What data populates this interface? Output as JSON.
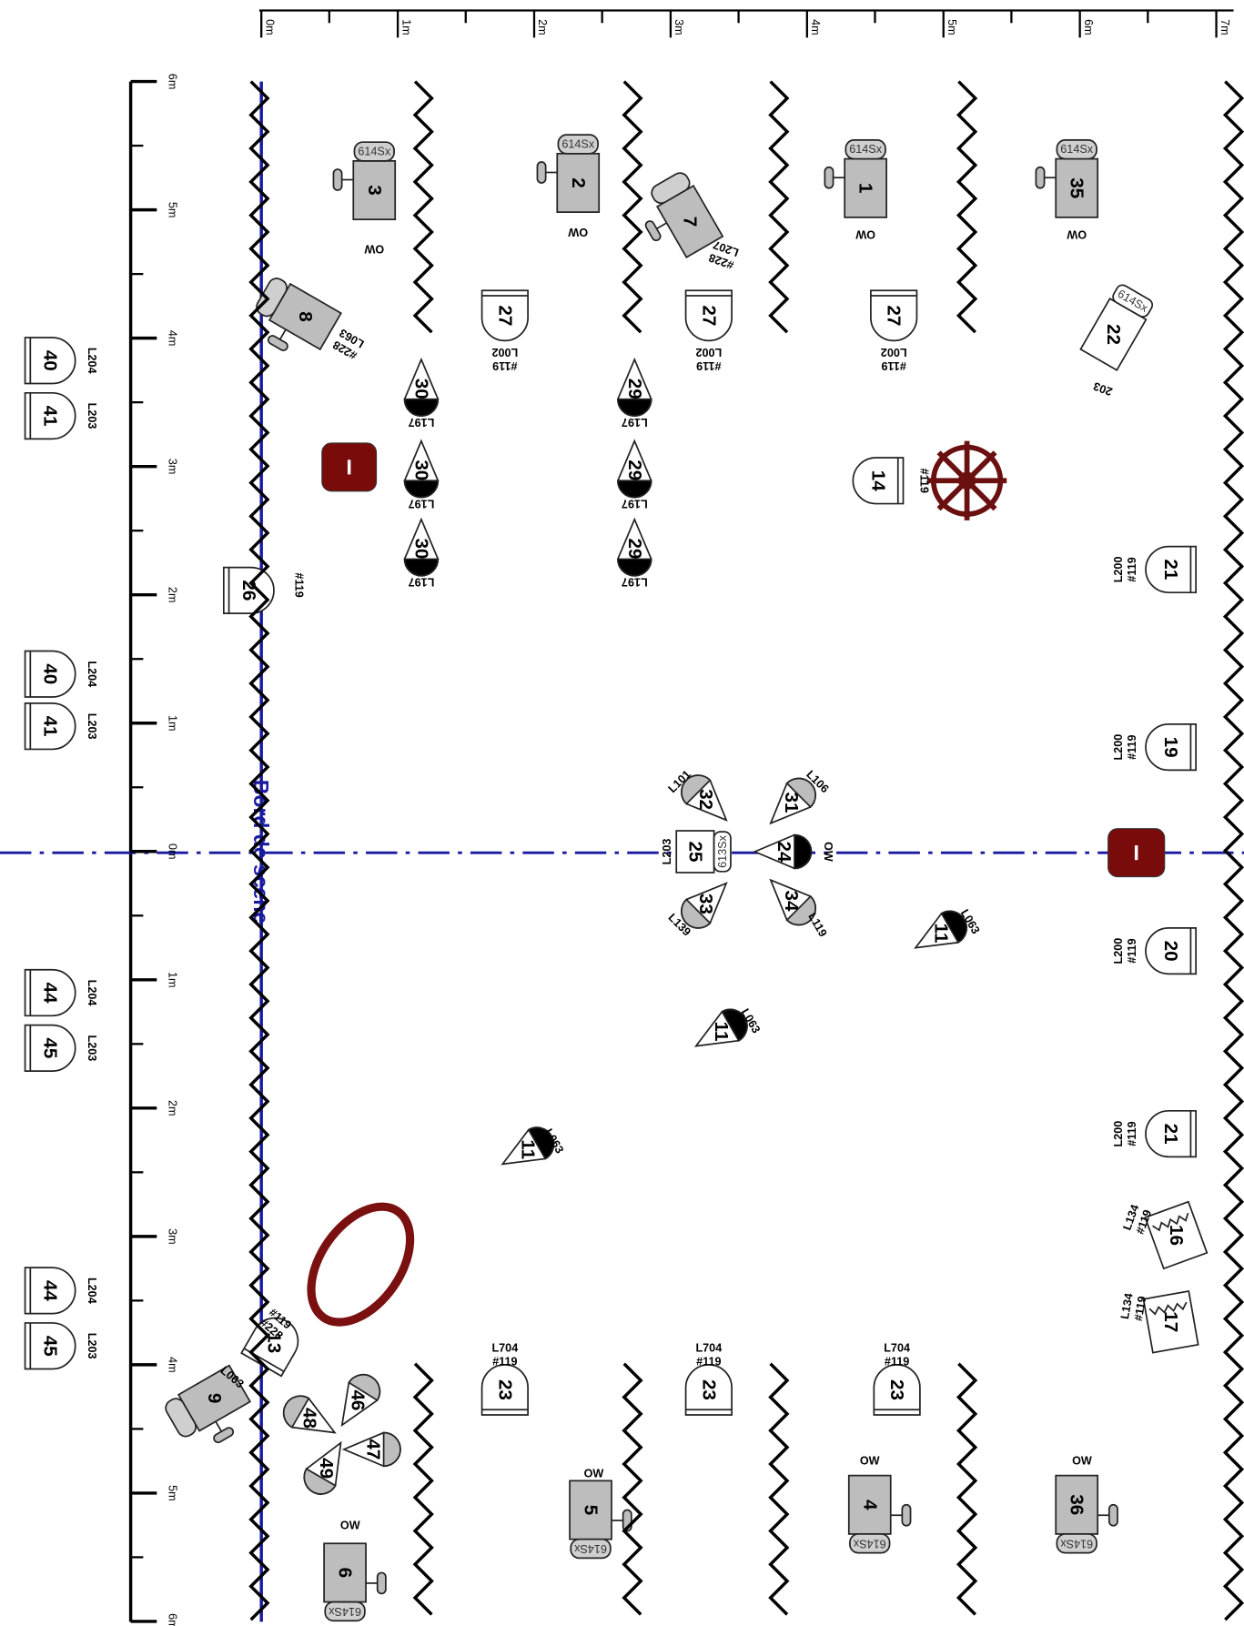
{
  "top_ruler": [
    "0m",
    "1m",
    "2m",
    "3m",
    "4m",
    "5m",
    "6m",
    "7m"
  ],
  "left_ruler": [
    "6m",
    "5m",
    "4m",
    "3m",
    "2m",
    "1m",
    "0m",
    "1m",
    "2m",
    "3m",
    "4m",
    "5m",
    "6m"
  ],
  "stage_edge_label": "Bord de scene",
  "fixtures": [
    {
      "number": "3",
      "model": "614Sx",
      "labels": [
        "OW"
      ]
    },
    {
      "number": "2",
      "model": "614Sx",
      "labels": [
        "OW"
      ]
    },
    {
      "number": "1",
      "model": "614Sx",
      "labels": [
        "OW"
      ]
    },
    {
      "number": "35",
      "model": "614Sx",
      "labels": [
        "OW"
      ]
    },
    {
      "number": "6",
      "model": "614Sx",
      "labels": [
        "OW"
      ]
    },
    {
      "number": "5",
      "model": "614Sx",
      "labels": [
        "OW"
      ]
    },
    {
      "number": "4",
      "model": "614Sx",
      "labels": [
        "OW"
      ]
    },
    {
      "number": "36",
      "model": "614Sx",
      "labels": [
        "OW"
      ]
    },
    {
      "number": "7",
      "labels": [
        "#228",
        "L207"
      ]
    },
    {
      "number": "8",
      "labels": [
        "#228",
        "L063"
      ]
    },
    {
      "number": "9",
      "labels": [
        "L063"
      ]
    },
    {
      "number": "27",
      "labels": [
        "#119",
        "L002"
      ]
    },
    {
      "number": "27",
      "labels": [
        "#119",
        "L002"
      ]
    },
    {
      "number": "27",
      "labels": [
        "#119",
        "L002"
      ]
    },
    {
      "number": "23",
      "labels": [
        "L704",
        "#119"
      ]
    },
    {
      "number": "23",
      "labels": [
        "L704",
        "#119"
      ]
    },
    {
      "number": "23",
      "labels": [
        "L704",
        "#119"
      ]
    },
    {
      "number": "30",
      "labels": [
        "L197"
      ]
    },
    {
      "number": "30",
      "labels": [
        "L197"
      ]
    },
    {
      "number": "30",
      "labels": [
        "L197"
      ]
    },
    {
      "number": "29",
      "labels": [
        "L197"
      ]
    },
    {
      "number": "29",
      "labels": [
        "L197"
      ]
    },
    {
      "number": "29",
      "labels": [
        "L197"
      ]
    },
    {
      "number": "14",
      "labels": [
        "#119"
      ]
    },
    {
      "number": "26",
      "labels": [
        "#119"
      ]
    },
    {
      "number": "21",
      "labels": [
        "L200",
        "#119"
      ]
    },
    {
      "number": "19",
      "labels": [
        "L200",
        "#119"
      ]
    },
    {
      "number": "20",
      "labels": [
        "L200",
        "#119"
      ]
    },
    {
      "number": "21",
      "labels": [
        "L200",
        "#119"
      ]
    },
    {
      "number": "16",
      "labels": [
        "L134",
        "#119"
      ]
    },
    {
      "number": "17",
      "labels": [
        "L134",
        "#119"
      ]
    },
    {
      "number": "22",
      "model": "614Sx",
      "labels": [
        "203"
      ]
    },
    {
      "number": "25",
      "model": "613Sx",
      "labels": [
        "L203"
      ]
    },
    {
      "number": "24",
      "labels": [
        "OW"
      ]
    },
    {
      "number": "31",
      "labels": [
        "L106"
      ]
    },
    {
      "number": "32",
      "labels": [
        "L101"
      ]
    },
    {
      "number": "33",
      "labels": [
        "L139"
      ]
    },
    {
      "number": "34",
      "labels": [
        "L119"
      ]
    },
    {
      "number": "11",
      "labels": [
        "L063"
      ]
    },
    {
      "number": "11",
      "labels": [
        "L063"
      ]
    },
    {
      "number": "11",
      "labels": [
        "L063"
      ]
    },
    {
      "number": "13",
      "labels": [
        "#119",
        "#228"
      ]
    },
    {
      "number": "46"
    },
    {
      "number": "47"
    },
    {
      "number": "48"
    },
    {
      "number": "49"
    },
    {
      "number": "40",
      "labels": [
        "L204"
      ]
    },
    {
      "number": "41",
      "labels": [
        "L203"
      ]
    },
    {
      "number": "40",
      "labels": [
        "L204"
      ]
    },
    {
      "number": "41",
      "labels": [
        "L203"
      ]
    },
    {
      "number": "44",
      "labels": [
        "L204"
      ]
    },
    {
      "number": "45",
      "labels": [
        "L203"
      ]
    },
    {
      "number": "44",
      "labels": [
        "L204"
      ]
    },
    {
      "number": "45",
      "labels": [
        "L203"
      ]
    }
  ]
}
